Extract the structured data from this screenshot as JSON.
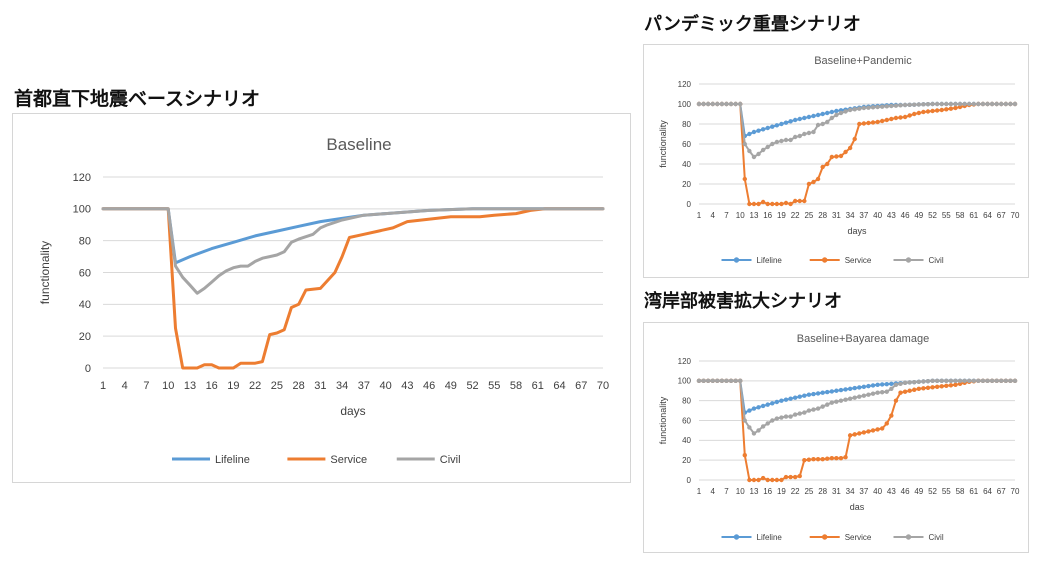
{
  "headings": {
    "main": "首都直下地震ベースシナリオ",
    "top_right": "パンデミック重畳シナリオ",
    "bottom_right": "湾岸部被害拡大シナリオ"
  },
  "colors": {
    "Lifeline": "#5B9BD5",
    "Service": "#ED7D31",
    "Civil": "#A5A5A5"
  },
  "chart_data": [
    {
      "type": "line",
      "title": "Baseline",
      "xlabel": "days",
      "ylabel": "functionality",
      "ylim": [
        0,
        120
      ],
      "yticks": [
        0,
        20,
        40,
        60,
        80,
        100,
        120
      ],
      "x_range": [
        1,
        70
      ],
      "xticks": [
        1,
        4,
        7,
        10,
        13,
        16,
        19,
        22,
        25,
        28,
        31,
        34,
        37,
        40,
        43,
        46,
        49,
        52,
        55,
        58,
        61,
        64,
        67,
        70
      ],
      "grid": true,
      "legend_position": "bottom",
      "markers": false,
      "series": [
        {
          "name": "Lifeline",
          "points": [
            [
              1,
              100
            ],
            [
              10,
              100
            ],
            [
              11,
              66
            ],
            [
              13,
              70
            ],
            [
              16,
              75
            ],
            [
              19,
              79
            ],
            [
              22,
              83
            ],
            [
              25,
              86
            ],
            [
              28,
              89
            ],
            [
              31,
              92
            ],
            [
              34,
              94
            ],
            [
              37,
              96
            ],
            [
              40,
              97
            ],
            [
              43,
              98
            ],
            [
              46,
              99
            ],
            [
              52,
              100
            ],
            [
              70,
              100
            ]
          ]
        },
        {
          "name": "Service",
          "points": [
            [
              1,
              100
            ],
            [
              10,
              100
            ],
            [
              11,
              25
            ],
            [
              12,
              0
            ],
            [
              14,
              0
            ],
            [
              15,
              2
            ],
            [
              16,
              2
            ],
            [
              17,
              0
            ],
            [
              19,
              0
            ],
            [
              20,
              3
            ],
            [
              22,
              3
            ],
            [
              23,
              4
            ],
            [
              24,
              21
            ],
            [
              25,
              22
            ],
            [
              26,
              24
            ],
            [
              27,
              38
            ],
            [
              28,
              40
            ],
            [
              29,
              49
            ],
            [
              31,
              50
            ],
            [
              32,
              55
            ],
            [
              33,
              60
            ],
            [
              34,
              70
            ],
            [
              35,
              82
            ],
            [
              37,
              84
            ],
            [
              39,
              86
            ],
            [
              41,
              88
            ],
            [
              43,
              92
            ],
            [
              45,
              93
            ],
            [
              47,
              94
            ],
            [
              49,
              95
            ],
            [
              51,
              95
            ],
            [
              53,
              95
            ],
            [
              55,
              96
            ],
            [
              58,
              97
            ],
            [
              60,
              99
            ],
            [
              62,
              100
            ],
            [
              70,
              100
            ]
          ]
        },
        {
          "name": "Civil",
          "points": [
            [
              1,
              100
            ],
            [
              10,
              100
            ],
            [
              11,
              64
            ],
            [
              12,
              57
            ],
            [
              13,
              52
            ],
            [
              14,
              47
            ],
            [
              15,
              50
            ],
            [
              16,
              54
            ],
            [
              17,
              58
            ],
            [
              18,
              61
            ],
            [
              19,
              63
            ],
            [
              20,
              64
            ],
            [
              21,
              64
            ],
            [
              22,
              67
            ],
            [
              23,
              69
            ],
            [
              24,
              70
            ],
            [
              25,
              71
            ],
            [
              26,
              73
            ],
            [
              27,
              79
            ],
            [
              28,
              81
            ],
            [
              30,
              84
            ],
            [
              31,
              88
            ],
            [
              32,
              90
            ],
            [
              34,
              93
            ],
            [
              37,
              96
            ],
            [
              40,
              97
            ],
            [
              43,
              98
            ],
            [
              46,
              99
            ],
            [
              52,
              100
            ],
            [
              70,
              100
            ]
          ]
        }
      ]
    },
    {
      "type": "line",
      "title": "Baseline+Pandemic",
      "xlabel": "days",
      "ylabel": "functionality",
      "ylim": [
        0,
        120
      ],
      "yticks": [
        0,
        20,
        40,
        60,
        80,
        100,
        120
      ],
      "x_range": [
        1,
        70
      ],
      "xticks": [
        1,
        4,
        7,
        10,
        13,
        16,
        19,
        22,
        25,
        28,
        31,
        34,
        37,
        40,
        43,
        46,
        49,
        52,
        55,
        58,
        61,
        64,
        67,
        70
      ],
      "grid": true,
      "legend_position": "bottom",
      "markers": true,
      "series": [
        {
          "name": "Lifeline",
          "points": [
            [
              1,
              100
            ],
            [
              10,
              100
            ],
            [
              11,
              68
            ],
            [
              13,
              72
            ],
            [
              16,
              76
            ],
            [
              19,
              80
            ],
            [
              22,
              84
            ],
            [
              25,
              87
            ],
            [
              28,
              90
            ],
            [
              31,
              93
            ],
            [
              34,
              95
            ],
            [
              37,
              97
            ],
            [
              40,
              98
            ],
            [
              43,
              99
            ],
            [
              46,
              99
            ],
            [
              52,
              100
            ],
            [
              70,
              100
            ]
          ]
        },
        {
          "name": "Service",
          "points": [
            [
              1,
              100
            ],
            [
              10,
              100
            ],
            [
              11,
              25
            ],
            [
              12,
              0
            ],
            [
              14,
              0
            ],
            [
              15,
              2
            ],
            [
              16,
              0
            ],
            [
              19,
              0
            ],
            [
              20,
              1
            ],
            [
              21,
              0
            ],
            [
              22,
              3
            ],
            [
              24,
              3
            ],
            [
              25,
              20
            ],
            [
              26,
              22
            ],
            [
              27,
              25
            ],
            [
              28,
              37
            ],
            [
              29,
              40
            ],
            [
              30,
              47
            ],
            [
              32,
              48
            ],
            [
              33,
              52
            ],
            [
              34,
              56
            ],
            [
              35,
              65
            ],
            [
              36,
              80
            ],
            [
              38,
              81
            ],
            [
              40,
              82
            ],
            [
              42,
              84
            ],
            [
              44,
              86
            ],
            [
              46,
              87
            ],
            [
              48,
              90
            ],
            [
              50,
              92
            ],
            [
              54,
              94
            ],
            [
              57,
              96
            ],
            [
              60,
              99
            ],
            [
              62,
              100
            ],
            [
              70,
              100
            ]
          ]
        },
        {
          "name": "Civil",
          "points": [
            [
              1,
              100
            ],
            [
              10,
              100
            ],
            [
              11,
              60
            ],
            [
              12,
              53
            ],
            [
              13,
              47
            ],
            [
              14,
              50
            ],
            [
              15,
              54
            ],
            [
              16,
              57
            ],
            [
              17,
              60
            ],
            [
              18,
              62
            ],
            [
              19,
              63
            ],
            [
              20,
              64
            ],
            [
              21,
              64
            ],
            [
              22,
              67
            ],
            [
              23,
              68
            ],
            [
              24,
              70
            ],
            [
              25,
              71
            ],
            [
              26,
              72
            ],
            [
              27,
              79
            ],
            [
              28,
              80
            ],
            [
              29,
              82
            ],
            [
              30,
              86
            ],
            [
              31,
              89
            ],
            [
              32,
              91
            ],
            [
              34,
              94
            ],
            [
              37,
              96
            ],
            [
              40,
              97
            ],
            [
              43,
              98
            ],
            [
              46,
              99
            ],
            [
              52,
              100
            ],
            [
              70,
              100
            ]
          ]
        }
      ]
    },
    {
      "type": "line",
      "title": "Baseline+Bayarea damage",
      "xlabel": "das",
      "ylabel": "functionality",
      "ylim": [
        0,
        120
      ],
      "yticks": [
        0,
        20,
        40,
        60,
        80,
        100,
        120
      ],
      "x_range": [
        1,
        70
      ],
      "xticks": [
        1,
        4,
        7,
        10,
        13,
        16,
        19,
        22,
        25,
        28,
        31,
        34,
        37,
        40,
        43,
        46,
        49,
        52,
        55,
        58,
        61,
        64,
        67,
        70
      ],
      "grid": true,
      "legend_position": "bottom",
      "markers": true,
      "series": [
        {
          "name": "Lifeline",
          "points": [
            [
              1,
              100
            ],
            [
              10,
              100
            ],
            [
              11,
              68
            ],
            [
              13,
              72
            ],
            [
              16,
              76
            ],
            [
              19,
              80
            ],
            [
              22,
              83
            ],
            [
              25,
              86
            ],
            [
              28,
              88
            ],
            [
              31,
              90
            ],
            [
              34,
              92
            ],
            [
              37,
              94
            ],
            [
              40,
              96
            ],
            [
              43,
              97
            ],
            [
              46,
              98
            ],
            [
              49,
              99
            ],
            [
              52,
              100
            ],
            [
              70,
              100
            ]
          ]
        },
        {
          "name": "Service",
          "points": [
            [
              1,
              100
            ],
            [
              10,
              100
            ],
            [
              11,
              25
            ],
            [
              12,
              0
            ],
            [
              14,
              0
            ],
            [
              15,
              2
            ],
            [
              16,
              0
            ],
            [
              19,
              0
            ],
            [
              20,
              3
            ],
            [
              22,
              3
            ],
            [
              23,
              4
            ],
            [
              24,
              20
            ],
            [
              26,
              21
            ],
            [
              28,
              21
            ],
            [
              30,
              22
            ],
            [
              32,
              22
            ],
            [
              33,
              23
            ],
            [
              34,
              45
            ],
            [
              35,
              46
            ],
            [
              37,
              48
            ],
            [
              39,
              50
            ],
            [
              41,
              52
            ],
            [
              42,
              57
            ],
            [
              43,
              65
            ],
            [
              44,
              80
            ],
            [
              45,
              88
            ],
            [
              47,
              90
            ],
            [
              49,
              92
            ],
            [
              51,
              93
            ],
            [
              53,
              94
            ],
            [
              55,
              95
            ],
            [
              57,
              96
            ],
            [
              60,
              99
            ],
            [
              62,
              100
            ],
            [
              70,
              100
            ]
          ]
        },
        {
          "name": "Civil",
          "points": [
            [
              1,
              100
            ],
            [
              10,
              100
            ],
            [
              11,
              60
            ],
            [
              12,
              53
            ],
            [
              13,
              47
            ],
            [
              14,
              50
            ],
            [
              15,
              54
            ],
            [
              16,
              57
            ],
            [
              17,
              60
            ],
            [
              18,
              62
            ],
            [
              19,
              63
            ],
            [
              20,
              64
            ],
            [
              21,
              64
            ],
            [
              22,
              66
            ],
            [
              23,
              67
            ],
            [
              24,
              68
            ],
            [
              25,
              70
            ],
            [
              26,
              71
            ],
            [
              27,
              72
            ],
            [
              28,
              74
            ],
            [
              29,
              76
            ],
            [
              30,
              78
            ],
            [
              31,
              79
            ],
            [
              32,
              80
            ],
            [
              34,
              82
            ],
            [
              36,
              84
            ],
            [
              38,
              86
            ],
            [
              40,
              88
            ],
            [
              42,
              89
            ],
            [
              43,
              92
            ],
            [
              44,
              96
            ],
            [
              46,
              98
            ],
            [
              49,
              99
            ],
            [
              52,
              100
            ],
            [
              70,
              100
            ]
          ]
        }
      ]
    }
  ]
}
